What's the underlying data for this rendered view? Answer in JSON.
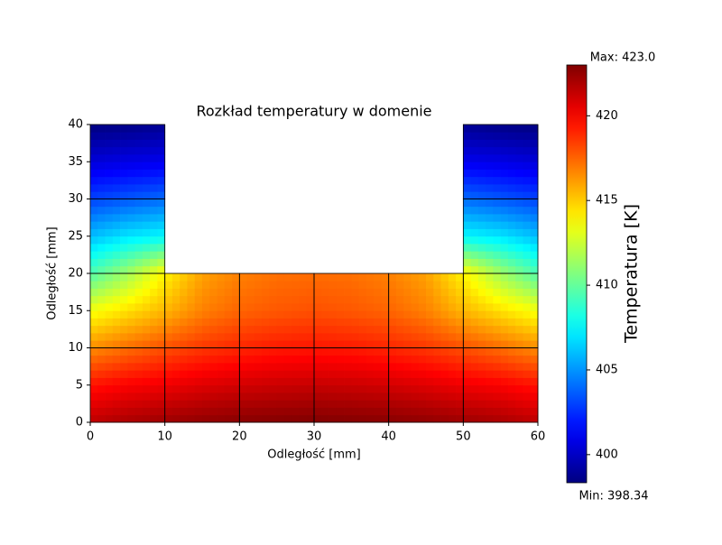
{
  "chart_data": {
    "type": "field",
    "title": "Rozkład temperatury w domenie",
    "x_label": "Odległość [mm]",
    "y_label": "Odległość [mm]",
    "colorbar_label": "Temperatura [K]",
    "annotations": [
      "Max: 423.0",
      "Min: 398.34"
    ],
    "colormap": "jet",
    "clim": [
      398.34,
      423
    ],
    "cticks": [
      400,
      405,
      410,
      415,
      420
    ],
    "xlim": [
      0,
      60
    ],
    "ylim": [
      0,
      40
    ],
    "xticks": [
      0,
      10,
      20,
      30,
      40,
      50,
      60
    ],
    "yticks": [
      0,
      5,
      10,
      15,
      20,
      25,
      30,
      35,
      40
    ],
    "x": [
      0,
      5,
      10,
      15,
      20,
      25,
      30,
      35,
      40,
      45,
      50,
      55,
      60
    ],
    "y": [
      0,
      5,
      10,
      15,
      20,
      25,
      30,
      35,
      40
    ],
    "values": [
      [
        421.5,
        422,
        422.3,
        422.6,
        422.8,
        422.9,
        423,
        422.9,
        422.8,
        422.6,
        422.3,
        422,
        421.5
      ],
      [
        419.5,
        420,
        420.3,
        420.7,
        421,
        421.2,
        421.3,
        421.2,
        421,
        420.7,
        420.3,
        420,
        419.5
      ],
      [
        416.5,
        417.3,
        418,
        418.6,
        419,
        419.3,
        419.4,
        419.3,
        419,
        418.6,
        418,
        417.3,
        416.5
      ],
      [
        413.5,
        414.5,
        415.5,
        416.8,
        417.5,
        417.8,
        418,
        417.8,
        417.5,
        416.8,
        415.5,
        414.5,
        413.5
      ],
      [
        409.5,
        411.5,
        414,
        416,
        416.8,
        417.2,
        417.3,
        417.2,
        416.8,
        416,
        414,
        411.5,
        409.5
      ],
      [
        406,
        407,
        407.5,
        null,
        null,
        null,
        null,
        null,
        null,
        null,
        407.5,
        407,
        406
      ],
      [
        403,
        403.5,
        404,
        null,
        null,
        null,
        null,
        null,
        null,
        null,
        404,
        403.5,
        403
      ],
      [
        400.5,
        400.8,
        401,
        null,
        null,
        null,
        null,
        null,
        null,
        null,
        401,
        400.8,
        400.5
      ],
      [
        398.34,
        398.5,
        398.8,
        null,
        null,
        null,
        null,
        null,
        null,
        null,
        398.8,
        398.5,
        398.34
      ]
    ],
    "mesh": [
      [
        0,
        0,
        10,
        10
      ],
      [
        10,
        0,
        20,
        10
      ],
      [
        20,
        0,
        30,
        10
      ],
      [
        30,
        0,
        40,
        10
      ],
      [
        40,
        0,
        50,
        10
      ],
      [
        50,
        0,
        60,
        10
      ],
      [
        0,
        10,
        10,
        20
      ],
      [
        10,
        10,
        20,
        20
      ],
      [
        20,
        10,
        30,
        20
      ],
      [
        30,
        10,
        40,
        20
      ],
      [
        40,
        10,
        50,
        20
      ],
      [
        50,
        10,
        60,
        20
      ],
      [
        0,
        20,
        10,
        30
      ],
      [
        50,
        20,
        60,
        30
      ],
      [
        0,
        30,
        10,
        40
      ],
      [
        50,
        30,
        60,
        40
      ]
    ]
  }
}
